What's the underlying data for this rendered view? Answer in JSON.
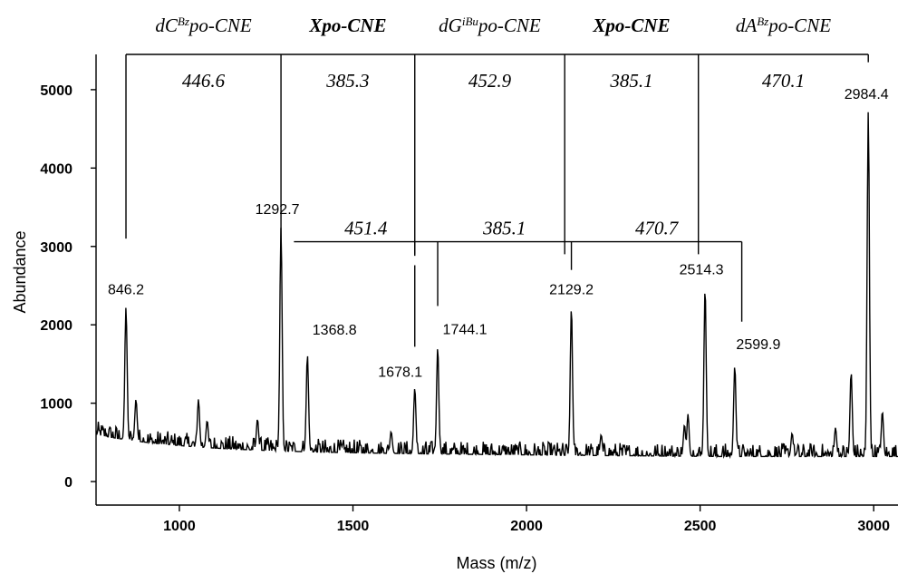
{
  "chart_data": {
    "type": "line",
    "title": "",
    "xlabel": "Mass (m/z)",
    "ylabel": "Abundance",
    "xlim": [
      760,
      3070
    ],
    "ylim": [
      -300,
      5450
    ],
    "xticks": [
      1000,
      1500,
      2000,
      2500,
      3000
    ],
    "yticks": [
      0,
      1000,
      2000,
      3000,
      4000,
      5000
    ],
    "baseline": 380,
    "peaks": [
      {
        "x": 846.2,
        "y": 2230,
        "label": "846.2"
      },
      {
        "x": 1292.7,
        "y": 3250,
        "label": "1292.7"
      },
      {
        "x": 1368.8,
        "y": 1620,
        "label": "1368.8"
      },
      {
        "x": 1678.1,
        "y": 1200,
        "label": "1678.1"
      },
      {
        "x": 1744.1,
        "y": 1720,
        "label": "1744.1"
      },
      {
        "x": 2129.2,
        "y": 2230,
        "label": "2129.2"
      },
      {
        "x": 2514.3,
        "y": 2480,
        "label": "2514.3"
      },
      {
        "x": 2599.9,
        "y": 1480,
        "label": "2599.9"
      },
      {
        "x": 2984.4,
        "y": 4720,
        "label": "2984.4"
      }
    ],
    "minor_peaks": [
      {
        "x": 875,
        "y": 1050
      },
      {
        "x": 1055,
        "y": 1050
      },
      {
        "x": 1080,
        "y": 780
      },
      {
        "x": 1225,
        "y": 800
      },
      {
        "x": 1610,
        "y": 640
      },
      {
        "x": 2215,
        "y": 600
      },
      {
        "x": 2455,
        "y": 730
      },
      {
        "x": 2465,
        "y": 860
      },
      {
        "x": 2765,
        "y": 620
      },
      {
        "x": 2890,
        "y": 690
      },
      {
        "x": 2935,
        "y": 1400
      },
      {
        "x": 3025,
        "y": 900
      }
    ],
    "upper_ladder": {
      "bracket_y": 5450,
      "ticks": [
        {
          "x": 846.2,
          "end_y": 3100
        },
        {
          "x": 1292.7,
          "end_y": 3020
        },
        {
          "x": 1678.1,
          "end_y": 2900
        },
        {
          "x": 2110,
          "end_y": 2900
        },
        {
          "x": 2495,
          "end_y": 2900
        },
        {
          "x": 2984.4,
          "end_y": 5350
        }
      ],
      "mass_differences": [
        "446.6",
        "385.3",
        "452.9",
        "385.1",
        "470.1"
      ],
      "residues": [
        {
          "pre": "dC",
          "sup": "Bz",
          "post": "po-CNE",
          "bold": false
        },
        {
          "pre": "Xpo-CNE",
          "sup": "",
          "post": "",
          "bold": true
        },
        {
          "pre": "dG",
          "sup": "iBu",
          "post": "po-CNE",
          "bold": false
        },
        {
          "pre": "Xpo-CNE",
          "sup": "",
          "post": "",
          "bold": true
        },
        {
          "pre": "dA",
          "sup": "Bz",
          "post": "po-CNE",
          "bold": false
        }
      ]
    },
    "lower_ladder": {
      "bracket_y": 3060,
      "left_x": 1330,
      "ticks": [
        {
          "x": 1678.1,
          "end_y": 1720,
          "gap_from": 2880,
          "gap_to": 2760
        },
        {
          "x": 1744.1,
          "end_y": 2240
        },
        {
          "x": 2129.2,
          "end_y": 2700
        },
        {
          "x": 2620,
          "end_y": 2040
        }
      ],
      "mass_differences": [
        "451.4",
        "385.1",
        "470.7"
      ]
    }
  }
}
